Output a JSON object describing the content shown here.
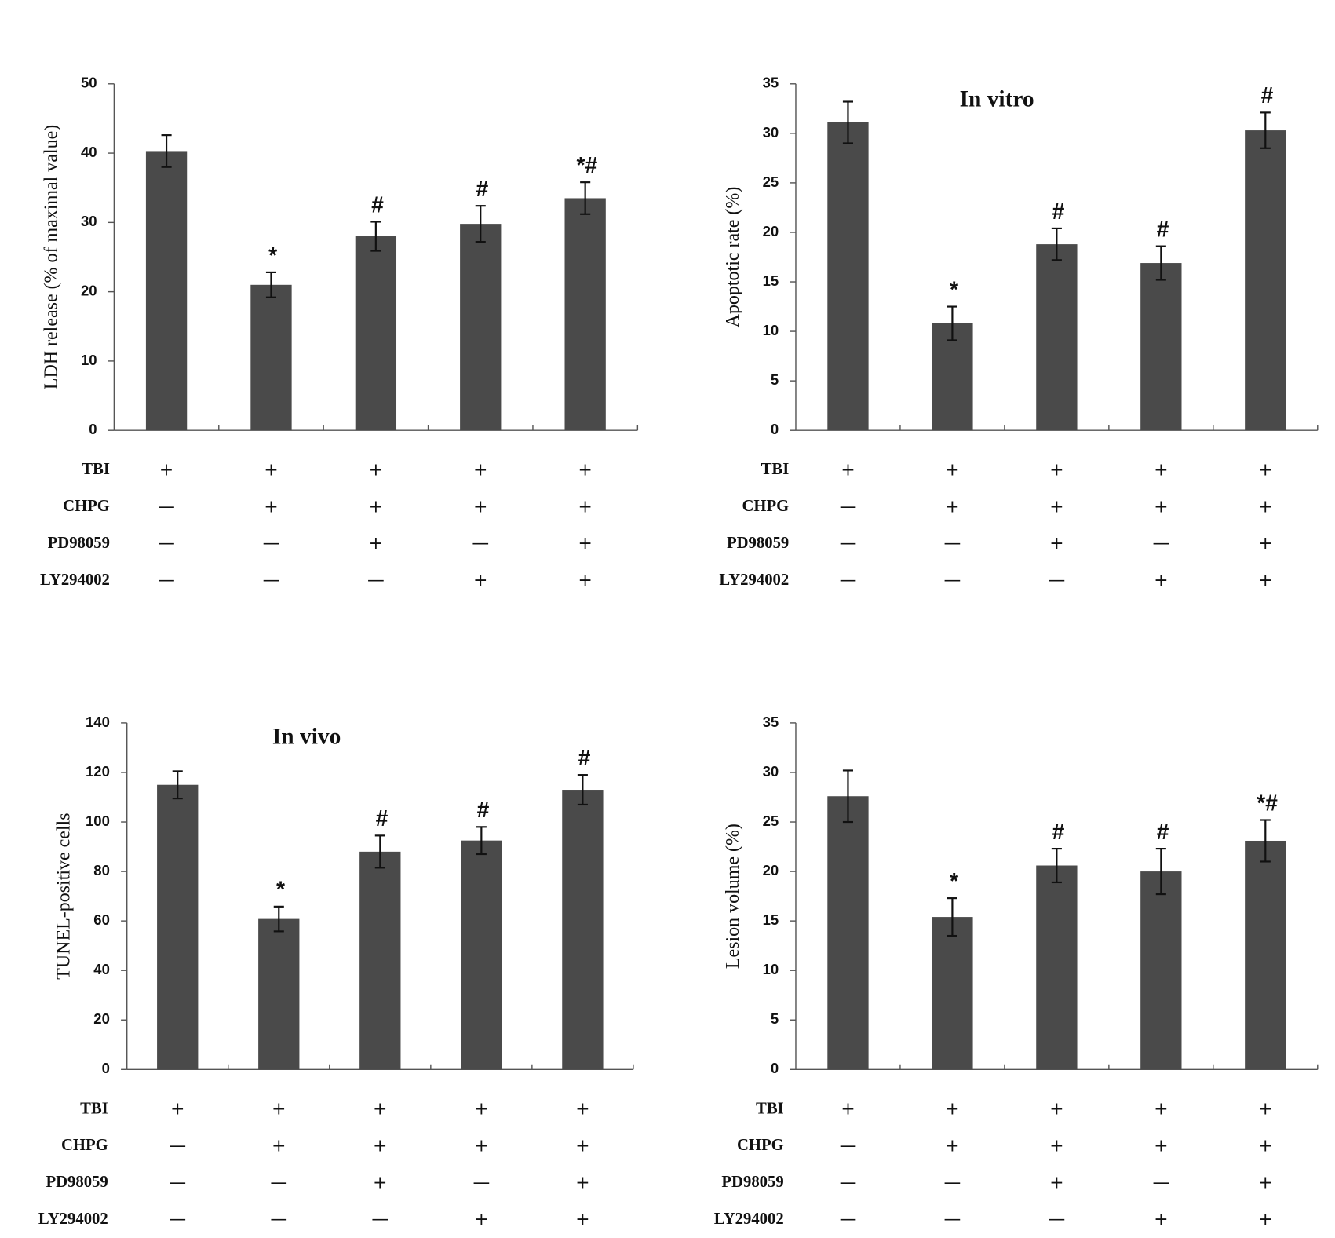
{
  "chart_data": [
    {
      "type": "bar",
      "ylabel": "LDH release (% of maximal value)",
      "color": "#4a4a4a",
      "categories": [
        null,
        null,
        null,
        null,
        null
      ],
      "values": [
        40.3,
        21,
        28,
        29.8,
        33.5
      ],
      "errors": [
        2.3,
        1.8,
        2.1,
        2.6,
        2.3
      ],
      "annotations": [
        null,
        "*",
        "#",
        "#",
        "*#"
      ],
      "ylim": [
        0,
        50
      ],
      "yticks": [
        0,
        10,
        20,
        30,
        40,
        50
      ],
      "treatments": [
        {
          "name": "TBI",
          "signs": [
            "+",
            "+",
            "+",
            "+",
            "+"
          ]
        },
        {
          "name": "CHPG",
          "signs": [
            "—",
            "+",
            "+",
            "+",
            "+"
          ]
        },
        {
          "name": "PD98059",
          "signs": [
            "—",
            "—",
            "+",
            "—",
            "+"
          ]
        },
        {
          "name": "LY294002",
          "signs": [
            "—",
            "—",
            "—",
            "+",
            "+"
          ]
        }
      ]
    },
    {
      "type": "bar",
      "title": "In vitro",
      "ylabel": "Apoptotic rate (%)",
      "color": "#4a4a4a",
      "categories": [
        null,
        null,
        null,
        null,
        null
      ],
      "values": [
        31.1,
        10.8,
        18.8,
        16.9,
        30.3
      ],
      "errors": [
        2.1,
        1.7,
        1.6,
        1.7,
        1.8
      ],
      "annotations": [
        null,
        "*",
        "#",
        "#",
        "#"
      ],
      "ylim": [
        0,
        35
      ],
      "yticks": [
        0,
        5,
        10,
        15,
        20,
        25,
        30,
        35
      ],
      "treatments": [
        {
          "name": "TBI",
          "signs": [
            "+",
            "+",
            "+",
            "+",
            "+"
          ]
        },
        {
          "name": "CHPG",
          "signs": [
            "—",
            "+",
            "+",
            "+",
            "+"
          ]
        },
        {
          "name": "PD98059",
          "signs": [
            "—",
            "—",
            "+",
            "—",
            "+"
          ]
        },
        {
          "name": "LY294002",
          "signs": [
            "—",
            "—",
            "—",
            "+",
            "+"
          ]
        }
      ]
    },
    {
      "type": "bar",
      "title": "In vivo",
      "ylabel": "TUNEL-positive cells",
      "color": "#4a4a4a",
      "categories": [
        null,
        null,
        null,
        null,
        null
      ],
      "values": [
        115,
        60.8,
        88,
        92.5,
        113
      ],
      "errors": [
        5.5,
        5,
        6.5,
        5.5,
        6
      ],
      "annotations": [
        null,
        "*",
        "#",
        "#",
        "#"
      ],
      "ylim": [
        0,
        140
      ],
      "yticks": [
        0,
        20,
        40,
        60,
        80,
        100,
        120,
        140
      ],
      "treatments": [
        {
          "name": "TBI",
          "signs": [
            "+",
            "+",
            "+",
            "+",
            "+"
          ]
        },
        {
          "name": "CHPG",
          "signs": [
            "—",
            "+",
            "+",
            "+",
            "+"
          ]
        },
        {
          "name": "PD98059",
          "signs": [
            "—",
            "—",
            "+",
            "—",
            "+"
          ]
        },
        {
          "name": "LY294002",
          "signs": [
            "—",
            "—",
            "—",
            "+",
            "+"
          ]
        }
      ]
    },
    {
      "type": "bar",
      "ylabel": "Lesion volume (%)",
      "color": "#4a4a4a",
      "categories": [
        null,
        null,
        null,
        null,
        null
      ],
      "values": [
        27.6,
        15.4,
        20.6,
        20,
        23.1
      ],
      "errors": [
        2.6,
        1.9,
        1.7,
        2.3,
        2.1
      ],
      "annotations": [
        null,
        "*",
        "#",
        "#",
        "*#"
      ],
      "ylim": [
        0,
        35
      ],
      "yticks": [
        0,
        5,
        10,
        15,
        20,
        25,
        30,
        35
      ],
      "treatments": [
        {
          "name": "TBI",
          "signs": [
            "+",
            "+",
            "+",
            "+",
            "+"
          ]
        },
        {
          "name": "CHPG",
          "signs": [
            "—",
            "+",
            "+",
            "+",
            "+"
          ]
        },
        {
          "name": "PD98059",
          "signs": [
            "—",
            "—",
            "+",
            "—",
            "+"
          ]
        },
        {
          "name": "LY294002",
          "signs": [
            "—",
            "—",
            "—",
            "+",
            "+"
          ]
        }
      ]
    }
  ]
}
